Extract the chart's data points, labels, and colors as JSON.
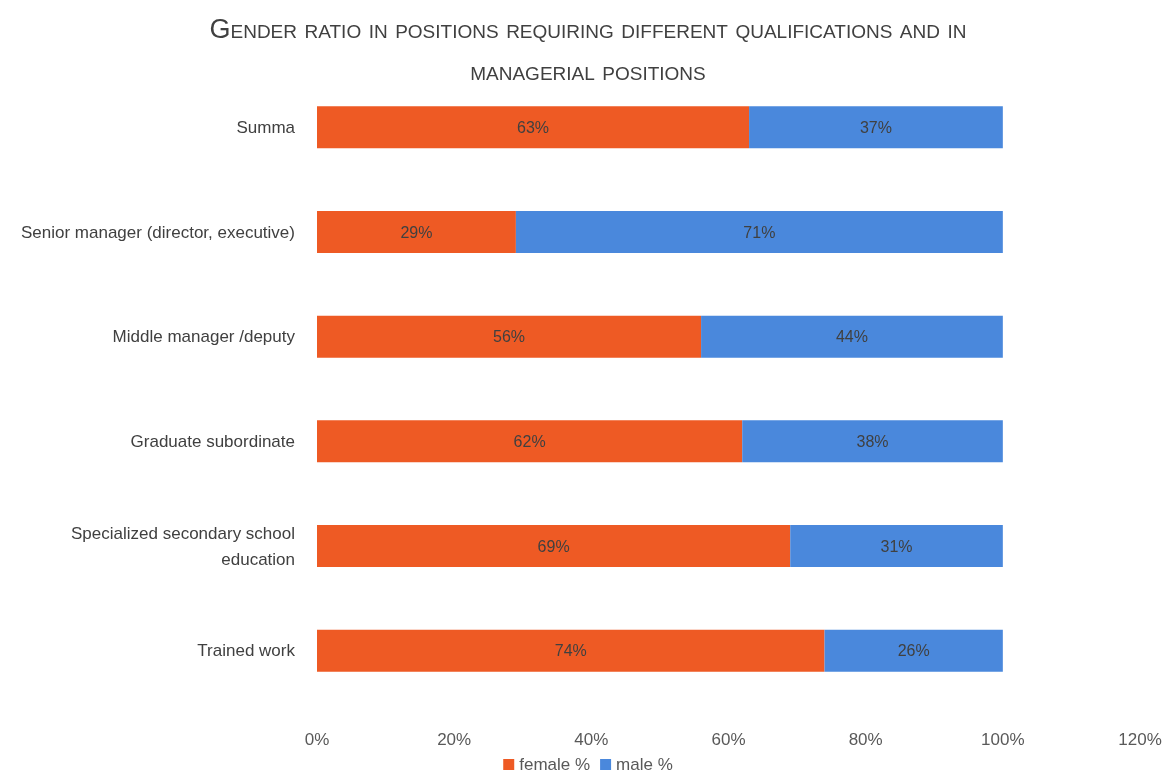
{
  "chart_data": {
    "type": "bar",
    "title": "Gender ratio in positions requiring different qualifications and in managerial positions",
    "orientation": "horizontal",
    "stacked": true,
    "categories": [
      "Summa",
      "Senior manager (director, executive)",
      "Middle manager /deputy",
      "Graduate subordinate",
      "Specialized secondary school education",
      "Trained work"
    ],
    "series": [
      {
        "name": "female %",
        "color": "#ee5a24",
        "values": [
          63,
          29,
          56,
          62,
          69,
          74
        ],
        "value_labels": [
          "63%",
          "29%",
          "56%",
          "62%",
          "69%",
          "74%"
        ]
      },
      {
        "name": "male %",
        "color": "#4a88dc",
        "values": [
          37,
          71,
          44,
          38,
          31,
          26
        ],
        "value_labels": [
          "37%",
          "71%",
          "44%",
          "38%",
          "31%",
          "26%"
        ]
      }
    ],
    "xlim": [
      0,
      120
    ],
    "xticks": [
      {
        "value": 0,
        "label": "0%"
      },
      {
        "value": 20,
        "label": "20%"
      },
      {
        "value": 40,
        "label": "40%"
      },
      {
        "value": 60,
        "label": "60%"
      },
      {
        "value": 80,
        "label": "80%"
      },
      {
        "value": 100,
        "label": "100%"
      },
      {
        "value": 120,
        "label": "120%"
      }
    ],
    "grid": false,
    "legend": "bottom"
  }
}
